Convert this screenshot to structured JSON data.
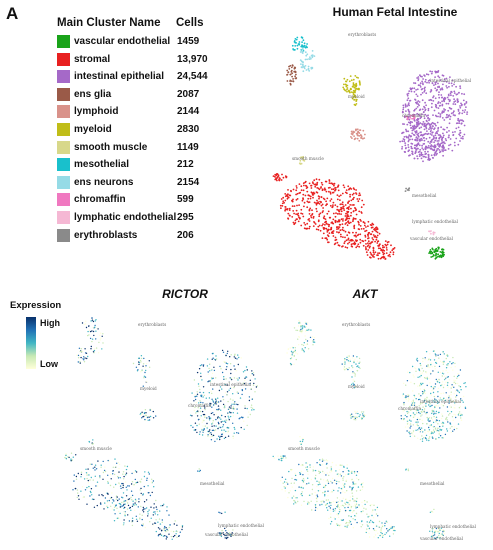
{
  "panel_label": "A",
  "legend": {
    "header_name": "Main Cluster Name",
    "header_cells": "Cells",
    "clusters": [
      {
        "name": "vascular endothelial",
        "cells": "1459",
        "color": "#1aa31a"
      },
      {
        "name": "stromal",
        "cells": "13,970",
        "color": "#e82020"
      },
      {
        "name": "intestinal epithelial",
        "cells": "24,544",
        "color": "#a569c8"
      },
      {
        "name": "ens glia",
        "cells": "2087",
        "color": "#9a5a48"
      },
      {
        "name": "lymphoid",
        "cells": "2144",
        "color": "#d9928a"
      },
      {
        "name": "myeloid",
        "cells": "2830",
        "color": "#c0bd18"
      },
      {
        "name": "smooth muscle",
        "cells": "1149",
        "color": "#d8d88a"
      },
      {
        "name": "mesothelial",
        "cells": "212",
        "color": "#19c0cc"
      },
      {
        "name": "ens neurons",
        "cells": "2154",
        "color": "#96dbe6"
      },
      {
        "name": "chromaffin",
        "cells": "599",
        "color": "#f078c0"
      },
      {
        "name": "lymphatic endothelial",
        "cells": "295",
        "color": "#f5b8d4"
      },
      {
        "name": "erythroblasts",
        "cells": "206",
        "color": "#8a8a8a"
      }
    ]
  },
  "umap_labels": {
    "erythroblasts": "erythroblasts",
    "intestinal_epithelial": "intestinal epithelial",
    "chromaffin": "chromaffin",
    "myeloid": "myeloid",
    "smooth_muscle": "smooth muscle",
    "mesothelial": "mesothelial",
    "lymphatic_endothelial": "lymphatic endothelial",
    "vascular_endothelial": "vascular endothelial"
  },
  "expression_legend": {
    "title": "Expression",
    "high": "High",
    "low": "Low",
    "colors": [
      "#08306b",
      "#2171b5",
      "#41b6c4",
      "#c7e9b4",
      "#ffffd9"
    ]
  },
  "chart_data": [
    {
      "type": "scatter",
      "title": "Human Fetal Intestine",
      "color_by": "cluster",
      "series": [
        {
          "name": "vascular endothelial",
          "color": "#1aa31a"
        },
        {
          "name": "stromal",
          "color": "#e82020"
        },
        {
          "name": "intestinal epithelial",
          "color": "#a569c8"
        },
        {
          "name": "ens glia",
          "color": "#9a5a48"
        },
        {
          "name": "lymphoid",
          "color": "#d9928a"
        },
        {
          "name": "myeloid",
          "color": "#c0bd18"
        },
        {
          "name": "smooth muscle",
          "color": "#d8d88a"
        },
        {
          "name": "mesothelial",
          "color": "#19c0cc"
        },
        {
          "name": "ens neurons",
          "color": "#96dbe6"
        },
        {
          "name": "chromaffin",
          "color": "#f078c0"
        },
        {
          "name": "lymphatic endothelial",
          "color": "#f5b8d4"
        },
        {
          "name": "erythroblasts",
          "color": "#8a8a8a"
        }
      ],
      "grid": false,
      "legend": "left"
    },
    {
      "type": "scatter",
      "title": "RICTOR",
      "color_by": "expression",
      "scale": [
        "Low",
        "High"
      ],
      "grid": false
    },
    {
      "type": "scatter",
      "title": "AKT",
      "color_by": "expression",
      "scale": [
        "Low",
        "High"
      ],
      "grid": false
    }
  ]
}
